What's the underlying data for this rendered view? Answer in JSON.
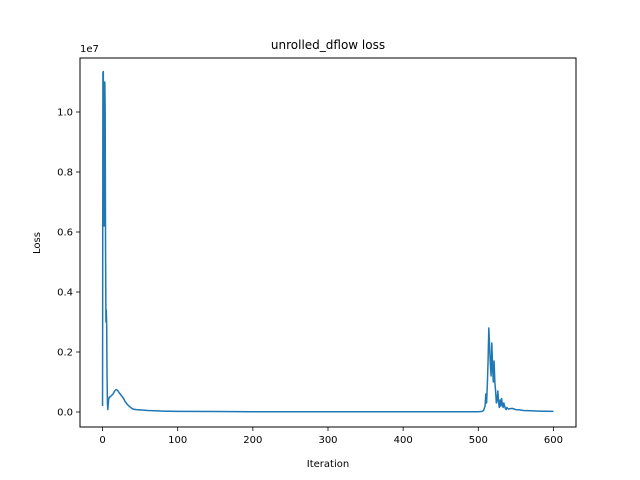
{
  "chart_data": {
    "type": "line",
    "title": "unrolled_dflow loss",
    "xlabel": "Iteration",
    "ylabel": "Loss",
    "y_multiplier_label": "1e7",
    "xlim": [
      -30,
      630
    ],
    "ylim": [
      -500000,
      11800000
    ],
    "x_ticks": [
      0,
      100,
      200,
      300,
      400,
      500,
      600
    ],
    "y_ticks": [
      0,
      2000000,
      4000000,
      6000000,
      8000000,
      10000000
    ],
    "y_tick_labels": [
      "0.0",
      "0.2",
      "0.4",
      "0.6",
      "0.8",
      "1.0"
    ],
    "grid": false,
    "series": [
      {
        "color": "#1f77b4",
        "x": [
          0,
          0.5,
          1,
          1.5,
          2,
          2.5,
          3,
          3.5,
          4,
          4.5,
          5,
          5.5,
          6,
          6.5,
          7,
          8,
          9,
          10,
          12,
          14,
          16,
          18,
          20,
          22,
          25,
          28,
          30,
          33,
          36,
          40,
          45,
          50,
          60,
          70,
          80,
          100,
          150,
          200,
          250,
          300,
          350,
          400,
          450,
          500,
          505,
          507,
          509,
          510,
          511,
          512,
          513,
          514,
          515,
          516,
          517,
          518,
          519,
          520,
          521,
          522,
          523,
          524,
          525,
          526,
          527,
          528,
          529,
          530,
          531,
          532,
          533,
          534,
          535,
          536,
          537,
          538,
          540,
          545,
          550,
          555,
          560,
          570,
          580,
          590,
          600
        ],
        "y": [
          200000,
          11300000,
          11350000,
          9000000,
          6200000,
          7800000,
          11000000,
          10000000,
          5500000,
          3000000,
          3400000,
          2900000,
          1200000,
          300000,
          80000,
          400000,
          500000,
          500000,
          550000,
          600000,
          700000,
          750000,
          720000,
          650000,
          550000,
          450000,
          350000,
          250000,
          180000,
          100000,
          80000,
          70000,
          50000,
          40000,
          30000,
          20000,
          15000,
          10000,
          10000,
          10000,
          10000,
          10000,
          10000,
          10000,
          20000,
          50000,
          200000,
          600000,
          300000,
          900000,
          1700000,
          2800000,
          2200000,
          1600000,
          1200000,
          2300000,
          1500000,
          1000000,
          1700000,
          1000000,
          700000,
          300000,
          400000,
          700000,
          300000,
          150000,
          400000,
          200000,
          450000,
          250000,
          150000,
          300000,
          200000,
          120000,
          80000,
          150000,
          100000,
          120000,
          80000,
          70000,
          50000,
          40000,
          30000,
          25000,
          20000
        ]
      }
    ]
  }
}
